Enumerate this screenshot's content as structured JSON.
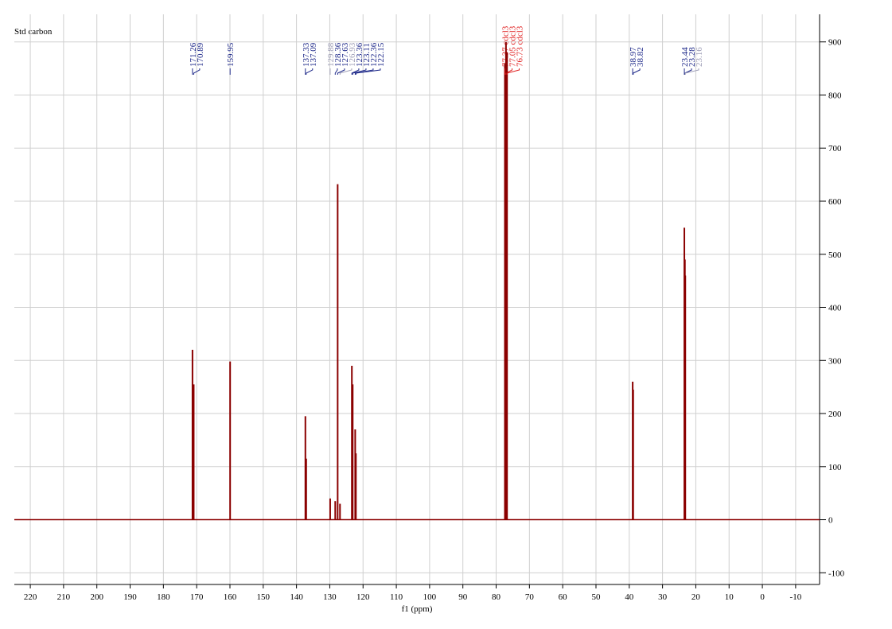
{
  "chart_data": {
    "type": "nmr",
    "title": "Std carbon",
    "x_label": "f1 (ppm)",
    "xlim": [
      224.8,
      -17.2
    ],
    "ylim": [
      -122,
      952
    ],
    "xticks": [
      220,
      210,
      200,
      190,
      180,
      170,
      160,
      150,
      140,
      130,
      120,
      110,
      100,
      90,
      80,
      70,
      60,
      50,
      40,
      30,
      20,
      10,
      0,
      -10
    ],
    "yticks": [
      -100,
      0,
      100,
      200,
      300,
      400,
      500,
      600,
      700,
      800,
      900
    ],
    "grid": true,
    "color": "#8b0000",
    "x": [
      171.26,
      170.89,
      159.95,
      137.33,
      137.09,
      129.88,
      128.36,
      127.63,
      126.93,
      123.36,
      123.11,
      122.36,
      122.15,
      77.37,
      77.05,
      76.73,
      38.97,
      38.82,
      23.44,
      23.28,
      23.16
    ],
    "values": [
      320,
      255,
      298,
      195,
      115,
      40,
      35,
      632,
      30,
      290,
      255,
      170,
      125,
      860,
      900,
      880,
      260,
      245,
      550,
      490,
      460
    ],
    "peak_labels": [
      "171.26",
      "170.89",
      "159.95",
      "137.33",
      "137.09",
      "129.88",
      "128.36",
      "127.63",
      "126.93",
      "123.36",
      "123.11",
      "122.36",
      "122.15",
      "77.37 cdcl3",
      "77.05 cdcl3",
      "76.73 cdcl3",
      "38.97",
      "38.82",
      "23.44",
      "23.28",
      "23.16"
    ],
    "label_colors": [
      "#1f2a8a",
      "#1f2a8a",
      "#1f2a8a",
      "#1f2a8a",
      "#1f2a8a",
      "#a0a0b8",
      "#1f2a8a",
      "#1f2a8a",
      "#a0a0b8",
      "#1f2a8a",
      "#1f2a8a",
      "#1f2a8a",
      "#1f2a8a",
      "#e02020",
      "#e02020",
      "#e02020",
      "#1f2a8a",
      "#1f2a8a",
      "#1f2a8a",
      "#1f2a8a",
      "#a0a0b8"
    ]
  }
}
